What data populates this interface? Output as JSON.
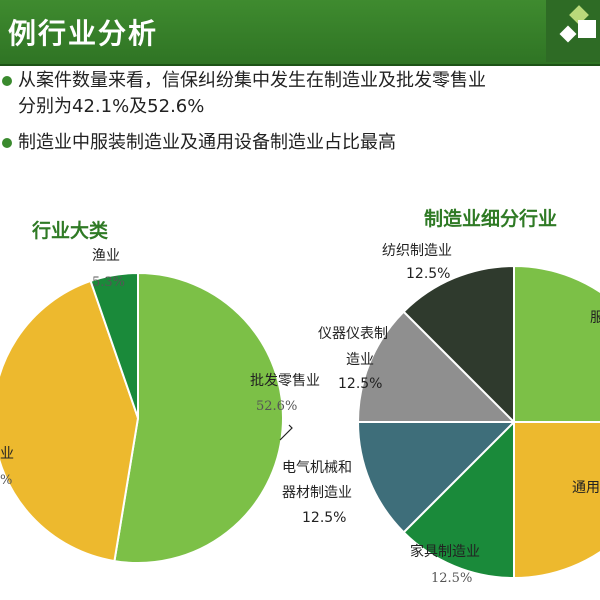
{
  "header": {
    "title": "例行业分析"
  },
  "bullets": [
    {
      "line1": "从案件数量来看，信保纠纷集中发生在制造业及批发零售业",
      "line2": "分别为42.1%及52.6%"
    },
    {
      "line1": "制造业中服装制造业及通用设备制造业占比最高"
    }
  ],
  "chart_data": [
    {
      "type": "pie",
      "title": "行业大类",
      "slices": [
        {
          "label": "批发零售业",
          "value": 52.6,
          "display": "52.6%",
          "color": "#7cc047"
        },
        {
          "label": "业",
          "value": 42.1,
          "display": "%",
          "color": "#edb92e"
        },
        {
          "label": "渔业",
          "value": 5.3,
          "display": "5.3%",
          "color": "#1a8a3a"
        }
      ]
    },
    {
      "type": "pie",
      "title": "制造业细分行业",
      "slices": [
        {
          "label": "服",
          "value": 25,
          "display": "",
          "color": "#7cc047"
        },
        {
          "label": "通用",
          "value": 25,
          "display": "",
          "color": "#edb92e"
        },
        {
          "label": "家具制造业",
          "value": 12.5,
          "display": "12.5%",
          "color": "#1a8a3a"
        },
        {
          "label": "电气机械和器材制造业",
          "line1": "电气机械和",
          "line2": "器材制造业",
          "value": 12.5,
          "display": "12.5%",
          "color": "#3e6e7a"
        },
        {
          "label": "仪器仪表制造业",
          "line1": "仪器仪表制",
          "line2": "造业",
          "value": 12.5,
          "display": "12.5%",
          "color": "#8f8f8f"
        },
        {
          "label": "纺织制造业",
          "value": 12.5,
          "display": "12.5%",
          "color": "#2f3a2d"
        }
      ]
    }
  ]
}
